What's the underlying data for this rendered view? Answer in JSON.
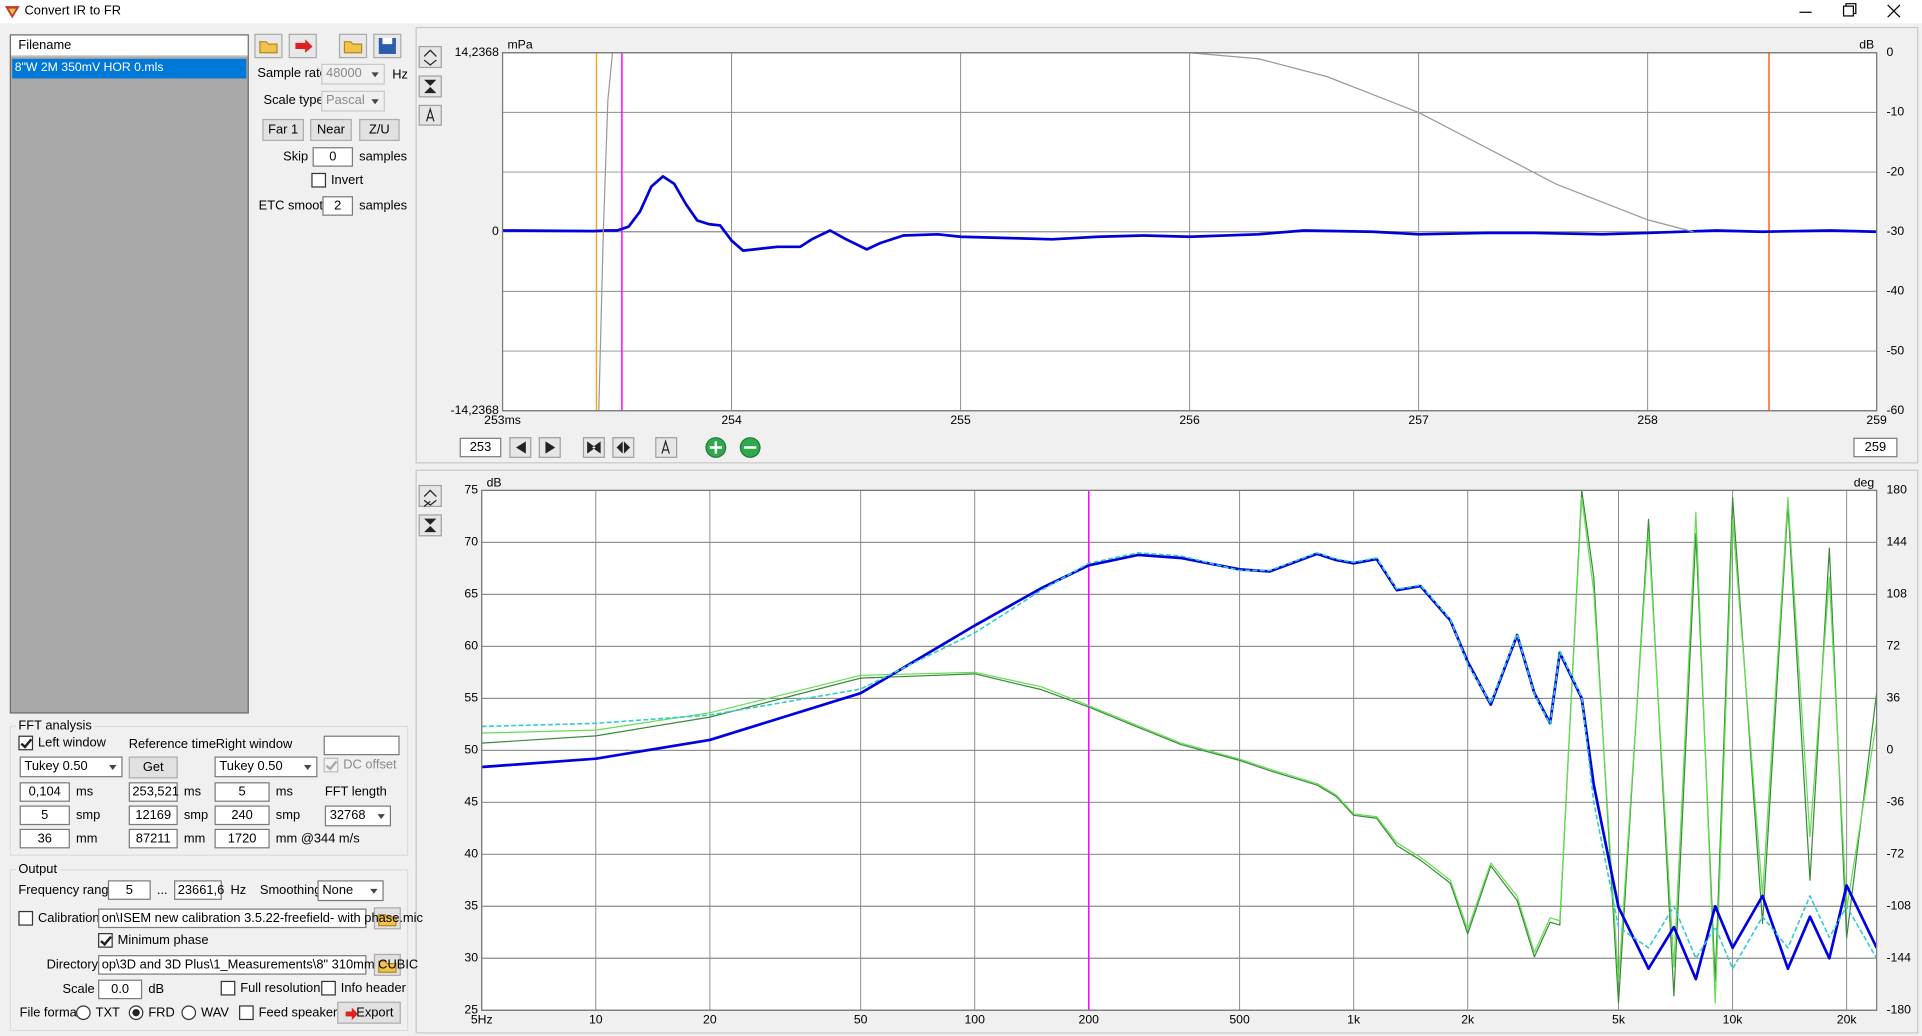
{
  "window": {
    "title": "Convert IR to FR"
  },
  "file_list": {
    "header": "Filename",
    "items": [
      "8\"W 2M 350mV HOR 0.mls"
    ]
  },
  "settings": {
    "sample_rate": {
      "label": "Sample rate",
      "value": "48000",
      "unit": "Hz"
    },
    "scale_type": {
      "label": "Scale type",
      "value": "Pascal"
    },
    "buttons": [
      "Far 1",
      "Near",
      "Z/U"
    ],
    "skip": {
      "label": "Skip",
      "value": "0",
      "unit": "samples"
    },
    "invert": {
      "label": "Invert",
      "checked": false
    },
    "etc_smooth": {
      "label": "ETC smooth",
      "value": "2",
      "unit": "samples"
    }
  },
  "fft_analysis": {
    "title": "FFT analysis",
    "left_window": {
      "label": "Left window",
      "checked": true,
      "type": "Tukey 0.50",
      "ms": "0,104",
      "smp": "5",
      "mm": "36"
    },
    "reference_time": {
      "label": "Reference time",
      "button": "Get",
      "ms": "253,521",
      "smp": "12169",
      "mm": "87211"
    },
    "right_window": {
      "label": "Right window",
      "type": "Tukey 0.50",
      "ms": "5",
      "smp": "240",
      "mm": "1720"
    },
    "units": {
      "ms": "ms",
      "smp": "smp",
      "mm": "mm",
      "mm_speed": "mm @344 m/s"
    },
    "dc_offset": {
      "label": "DC offset",
      "checked": true
    },
    "fft_length": {
      "label": "FFT length",
      "value": "32768"
    }
  },
  "output": {
    "title": "Output",
    "frequency_range": {
      "label": "Frequency range",
      "from": "5",
      "separator": "...",
      "to": "23661,6",
      "unit": "Hz"
    },
    "smoothing": {
      "label": "Smoothing",
      "value": "None"
    },
    "calibration": {
      "label": "Calibration",
      "checked": false,
      "file": "on\\ISEM new calibration 3.5.22-freefield- with phase.mic"
    },
    "minimum_phase": {
      "label": "Minimum phase",
      "checked": true
    },
    "directory": {
      "label": "Directory",
      "value": "op\\3D and 3D Plus\\1_Measurements\\8\" 310mm CUBIC"
    },
    "scale": {
      "label": "Scale",
      "value": "0.0",
      "unit": "dB"
    },
    "full_resolution": {
      "label": "Full resolution",
      "checked": false
    },
    "info_header": {
      "label": "Info header",
      "checked": false
    },
    "file_format": {
      "label": "File format",
      "options": [
        "TXT",
        "FRD",
        "WAV"
      ],
      "selected": 1
    },
    "feed_speaker": {
      "label": "Feed speaker",
      "checked": false
    },
    "export": "Export"
  },
  "impulse_chart": {
    "type": "line",
    "y_unit": "mPa",
    "y2_unit": "dB",
    "grid": true,
    "xlim": [
      253,
      259
    ],
    "xticks": [
      {
        "value": 253,
        "label": "253ms"
      },
      254,
      255,
      256,
      257,
      258,
      259
    ],
    "ylim": [
      -14.2368,
      14.2368
    ],
    "yticks": [
      {
        "value": -14.2368,
        "label": "-14,2368"
      },
      0,
      {
        "value": 14.2368,
        "label": "14,2368"
      }
    ],
    "y2lim": [
      -60,
      0
    ],
    "y2ticks": [
      0,
      -10,
      -20,
      -30,
      -40,
      -50,
      -60
    ],
    "markers": [
      {
        "x": 253.41,
        "color": "#f5a623"
      },
      {
        "x": 253.521,
        "color": "#ff00ff"
      },
      {
        "x": 258.53,
        "color": "#ff5a1f"
      }
    ],
    "series": [
      {
        "color": "#0000d8",
        "style": "thick",
        "x": [
          253,
          253.4,
          253.45,
          253.5,
          253.55,
          253.6,
          253.65,
          253.7,
          253.75,
          253.8,
          253.85,
          253.9,
          253.95,
          254.0,
          254.05,
          254.1,
          254.2,
          254.3,
          254.35,
          254.43,
          254.5,
          254.59,
          254.65,
          254.75,
          254.9,
          255.0,
          255.2,
          255.4,
          255.6,
          255.8,
          256.0,
          256.3,
          256.5,
          256.8,
          257.0,
          257.3,
          257.5,
          257.8,
          258.0,
          258.3,
          258.5,
          258.8,
          259
        ],
        "values": [
          0.1,
          0.05,
          0.1,
          0.1,
          0.4,
          1.6,
          3.6,
          4.4,
          3.8,
          2.2,
          0.9,
          0.6,
          0.5,
          -0.7,
          -1.5,
          -1.4,
          -1.2,
          -1.2,
          -0.6,
          0.1,
          -0.6,
          -1.4,
          -0.9,
          -0.3,
          -0.2,
          -0.4,
          -0.5,
          -0.6,
          -0.4,
          -0.3,
          -0.4,
          -0.2,
          0.1,
          0,
          -0.2,
          -0.1,
          -0.1,
          -0.2,
          -0.1,
          0.1,
          0,
          0.1,
          0
        ]
      },
      {
        "color": "#999999",
        "style": "thin",
        "axis": "y2",
        "x": [
          253.42,
          253.44,
          253.46,
          253.48,
          256.0,
          256.3,
          256.6,
          257.0,
          257.3,
          257.6,
          258.0,
          258.2
        ],
        "values": [
          -60,
          -30,
          -8,
          0,
          0,
          -1,
          -4,
          -10,
          -16,
          -22,
          -28,
          -30
        ]
      }
    ],
    "range_start": "253",
    "range_end": "259"
  },
  "response_chart": {
    "type": "line",
    "x_scale": "log",
    "y_unit": "dB",
    "y2_unit": "deg",
    "grid": true,
    "xlim": [
      5,
      24000
    ],
    "xticks": [
      {
        "value": 5,
        "label": "5Hz"
      },
      10,
      20,
      50,
      100,
      200,
      500,
      {
        "value": 1000,
        "label": "1k"
      },
      {
        "value": 2000,
        "label": "2k"
      },
      {
        "value": 5000,
        "label": "5k"
      },
      {
        "value": 10000,
        "label": "10k"
      },
      {
        "value": 20000,
        "label": "20k"
      }
    ],
    "ylim": [
      25,
      75
    ],
    "yticks": [
      25,
      30,
      35,
      40,
      45,
      50,
      55,
      60,
      65,
      70,
      75
    ],
    "y2lim": [
      -180,
      180
    ],
    "y2ticks": [
      -180,
      -144,
      -108,
      -72,
      -36,
      0,
      36,
      72,
      108,
      144,
      180
    ],
    "markers": [
      {
        "x": 200,
        "color": "#ff00ff"
      }
    ],
    "series": [
      {
        "color": "#3a8a3a",
        "style": "thin",
        "axis": "y2",
        "x": [
          5,
          10,
          20,
          50,
          100,
          150,
          200,
          270,
          350,
          500,
          600,
          800,
          900,
          1000,
          1150,
          1300,
          1500,
          1800,
          2000,
          2300,
          2700,
          3000,
          3300,
          3500,
          4000,
          4300,
          5000,
          6000,
          7000,
          8000,
          9000,
          10000,
          12000,
          14000,
          16000,
          18000,
          20000,
          24000
        ],
        "values": [
          5,
          10,
          23,
          50,
          53,
          42,
          30,
          16,
          4,
          -7,
          -14,
          -24,
          -32,
          -45,
          -47,
          -66,
          -76,
          -92,
          -127,
          -80,
          -104,
          -143,
          -119,
          -121,
          180,
          120,
          -175,
          160,
          -170,
          150,
          -160,
          175,
          -120,
          170,
          -90,
          140,
          -130,
          40
        ]
      },
      {
        "color": "#66dd55",
        "style": "thin",
        "axis": "y2",
        "x": [
          5,
          10,
          20,
          50,
          100,
          150,
          200,
          270,
          350,
          500,
          600,
          800,
          900,
          1000,
          1150,
          1300,
          1500,
          1800,
          2000,
          2300,
          2700,
          3000,
          3300,
          3500,
          4000,
          4300,
          5000,
          6000,
          7000,
          8000,
          9000,
          10000,
          12000,
          14000,
          16000,
          18000,
          20000,
          24000
        ],
        "values": [
          12,
          14,
          26,
          52,
          54,
          44,
          31,
          17,
          5,
          -6,
          -13,
          -23,
          -31,
          -44,
          -46,
          -64,
          -74,
          -90,
          -124,
          -78,
          -101,
          -140,
          -116,
          -118,
          175,
          110,
          -160,
          150,
          -150,
          165,
          -175,
          160,
          -100,
          175,
          -60,
          120,
          -110,
          20
        ]
      },
      {
        "color": "#0000e0",
        "style": "thick",
        "x": [
          5,
          10,
          20,
          50,
          100,
          150,
          200,
          270,
          350,
          500,
          600,
          800,
          900,
          1000,
          1150,
          1300,
          1500,
          1800,
          2000,
          2300,
          2700,
          3000,
          3300,
          3500,
          4000,
          4300,
          5000,
          6000,
          7000,
          8000,
          9000,
          10000,
          12000,
          14000,
          16000,
          18000,
          20000,
          24000
        ],
        "values": [
          48.4,
          49.2,
          51,
          55.5,
          62,
          65.6,
          67.8,
          68.8,
          68.5,
          67.4,
          67.2,
          68.9,
          68.3,
          68,
          68.4,
          65.4,
          65.8,
          62.5,
          58.5,
          54.4,
          61.1,
          55.5,
          52.6,
          59.4,
          55,
          46.7,
          34.9,
          29,
          33,
          28,
          35,
          31,
          36,
          29,
          34,
          30,
          37,
          31
        ]
      },
      {
        "color": "#33cccc",
        "style": "dashed",
        "x": [
          5,
          10,
          20,
          50,
          100,
          150,
          200,
          270,
          350,
          500,
          600,
          800,
          900,
          1000,
          1150,
          1300,
          1500,
          1800,
          2000,
          2300,
          2700,
          3000,
          3300,
          3500,
          4000,
          4300,
          5000,
          6000,
          7000,
          8000,
          9000,
          10000,
          12000,
          14000,
          16000,
          18000,
          20000,
          24000
        ],
        "values": [
          52.3,
          52.6,
          53.4,
          55.9,
          61.3,
          65.4,
          68,
          69,
          68.7,
          67.3,
          67.3,
          69,
          68.4,
          68.1,
          68.5,
          65.5,
          65.9,
          62.6,
          58.3,
          54.5,
          61.2,
          55.4,
          52.5,
          59.5,
          55.1,
          45,
          33,
          31,
          35,
          30,
          33,
          29,
          34,
          31,
          36,
          32,
          35,
          30
        ]
      }
    ]
  }
}
